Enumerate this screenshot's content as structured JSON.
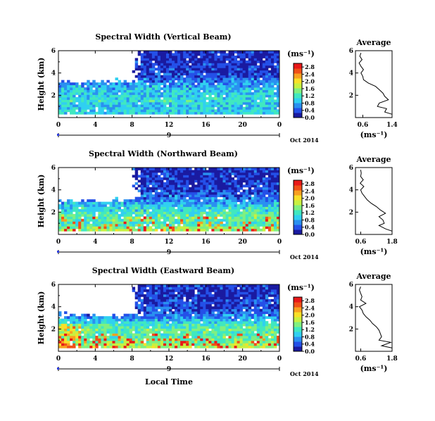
{
  "chart_data": [
    {
      "type": "heatmap",
      "title": "Spectral Width (Vertical Beam)",
      "ylabel": "Height (km)",
      "y_ticks": [
        "6",
        "4",
        "2"
      ],
      "x_ticks": [
        "0",
        "4",
        "8",
        "12",
        "16",
        "20",
        "0"
      ],
      "ylim": [
        0,
        6
      ],
      "xlim": [
        0,
        24
      ],
      "day_label": "9",
      "date_label": "Oct 2014",
      "colorbar": {
        "unit": "(ms⁻¹)",
        "ticks": [
          "2.8",
          "2.4",
          "2.0",
          "1.6",
          "1.2",
          "0.8",
          "0.4",
          "0.0"
        ],
        "range": [
          0,
          3.0
        ],
        "colors": [
          "#1a1aa0",
          "#2450e8",
          "#2a90f0",
          "#30d0f0",
          "#40e8c0",
          "#80f080",
          "#c8f040",
          "#f8e028",
          "#f8a020",
          "#f05018",
          "#e81818"
        ]
      },
      "typical_value_by_height": {
        "heights": [
          0.5,
          1.0,
          1.5,
          2.0,
          2.5,
          3.0,
          3.5,
          4.0,
          4.5,
          5.0,
          5.5
        ],
        "values": [
          1.0,
          0.9,
          1.1,
          1.0,
          0.9,
          0.7,
          0.5,
          0.3,
          0.3,
          0.2,
          0.2
        ]
      },
      "no_data_region": {
        "x_range": [
          0,
          8.5
        ],
        "height_range": [
          3.0,
          6.0
        ]
      },
      "profile": {
        "title": "Average",
        "xlabel": "(ms⁻¹)",
        "x_ticks": [
          "0.6",
          "1.4"
        ],
        "xlim": [
          0.4,
          1.4
        ],
        "y_ticks": [
          "6",
          "4",
          "2"
        ],
        "ylim": [
          0,
          6
        ],
        "height": [
          0.3,
          0.5,
          0.8,
          1.0,
          1.3,
          1.6,
          1.9,
          2.2,
          2.5,
          2.8,
          3.1,
          3.4,
          3.7,
          4.0,
          4.3,
          4.6,
          4.9,
          5.2,
          5.5,
          5.8
        ],
        "values": [
          1.4,
          1.2,
          1.25,
          1.0,
          1.05,
          1.3,
          1.2,
          1.15,
          1.05,
          0.95,
          0.75,
          0.62,
          0.6,
          0.55,
          0.62,
          0.55,
          0.5,
          0.58,
          0.52,
          0.55
        ]
      }
    },
    {
      "type": "heatmap",
      "title": "Spectral Width (Northward Beam)",
      "ylabel": "Height (km)",
      "y_ticks": [
        "6",
        "4",
        "2"
      ],
      "x_ticks": [
        "0",
        "4",
        "8",
        "12",
        "16",
        "20",
        "0"
      ],
      "ylim": [
        0,
        6
      ],
      "xlim": [
        0,
        24
      ],
      "day_label": "9",
      "date_label": "Oct 2014",
      "colorbar": {
        "unit": "(ms⁻¹)",
        "ticks": [
          "2.8",
          "2.4",
          "2.0",
          "1.6",
          "1.2",
          "0.8",
          "0.4",
          "0.0"
        ],
        "range": [
          0,
          3.0
        ],
        "colors": [
          "#1a1aa0",
          "#2450e8",
          "#2a90f0",
          "#30d0f0",
          "#40e8c0",
          "#80f080",
          "#c8f040",
          "#f8e028",
          "#f8a020",
          "#f05018",
          "#e81818"
        ]
      },
      "typical_value_by_height": {
        "heights": [
          0.5,
          1.0,
          1.5,
          2.0,
          2.5,
          3.0,
          3.5,
          4.0,
          4.5,
          5.0,
          5.5
        ],
        "values": [
          1.6,
          1.2,
          1.4,
          1.2,
          1.0,
          0.7,
          0.5,
          0.35,
          0.3,
          0.25,
          0.25
        ]
      },
      "no_data_region": {
        "x_range": [
          0,
          8.5
        ],
        "height_range": [
          2.8,
          6.0
        ]
      },
      "profile": {
        "title": "Average",
        "xlabel": "(ms⁻¹)",
        "x_ticks": [
          "0.6",
          "1.8"
        ],
        "xlim": [
          0.4,
          1.8
        ],
        "y_ticks": [
          "6",
          "4",
          "2"
        ],
        "ylim": [
          0,
          6
        ],
        "height": [
          0.3,
          0.5,
          0.8,
          1.0,
          1.3,
          1.6,
          1.9,
          2.2,
          2.5,
          2.8,
          3.1,
          3.4,
          3.7,
          4.0,
          4.3,
          4.6,
          4.9,
          5.2,
          5.5,
          5.8
        ],
        "values": [
          1.8,
          1.55,
          1.3,
          1.5,
          1.45,
          1.3,
          1.55,
          1.35,
          1.2,
          1.0,
          0.85,
          0.75,
          0.65,
          0.6,
          0.72,
          0.58,
          0.7,
          0.6,
          0.62,
          0.6
        ]
      }
    },
    {
      "type": "heatmap",
      "title": "Spectral Width (Eastward Beam)",
      "ylabel": "Height (km)",
      "y_ticks": [
        "6",
        "4",
        "2"
      ],
      "x_ticks": [
        "0",
        "4",
        "8",
        "12",
        "16",
        "20",
        "0"
      ],
      "ylim": [
        0,
        6
      ],
      "xlim": [
        0,
        24
      ],
      "day_label": "9",
      "date_label": "Oct 2014",
      "xlabel": "Local Time",
      "colorbar": {
        "unit": "(ms⁻¹)",
        "ticks": [
          "2.8",
          "2.4",
          "2.0",
          "1.6",
          "1.2",
          "0.8",
          "0.4",
          "0.0"
        ],
        "range": [
          0,
          3.0
        ],
        "colors": [
          "#1a1aa0",
          "#2450e8",
          "#2a90f0",
          "#30d0f0",
          "#40e8c0",
          "#80f080",
          "#c8f040",
          "#f8e028",
          "#f8a020",
          "#f05018",
          "#e81818"
        ]
      },
      "typical_value_by_height": {
        "heights": [
          0.5,
          1.0,
          1.5,
          2.0,
          2.5,
          3.0,
          3.5,
          4.0,
          4.5,
          5.0,
          5.5
        ],
        "values": [
          1.7,
          1.4,
          1.3,
          1.4,
          1.1,
          0.7,
          0.45,
          0.35,
          0.3,
          0.25,
          0.25
        ]
      },
      "no_data_region": {
        "x_range": [
          0,
          8.5
        ],
        "height_range": [
          3.0,
          6.0
        ]
      },
      "profile": {
        "title": "Average",
        "xlabel": "(ms⁻¹)",
        "x_ticks": [
          "0.6",
          "1.8"
        ],
        "xlim": [
          0.4,
          1.8
        ],
        "y_ticks": [
          "6",
          "4",
          "2"
        ],
        "ylim": [
          0,
          6
        ],
        "height": [
          0.3,
          0.5,
          0.8,
          1.0,
          1.3,
          1.6,
          1.9,
          2.2,
          2.5,
          2.8,
          3.1,
          3.4,
          3.7,
          4.0,
          4.3,
          4.6,
          4.9,
          5.2,
          5.5,
          5.8
        ],
        "values": [
          1.8,
          1.4,
          1.75,
          1.3,
          1.4,
          1.35,
          1.3,
          1.2,
          1.05,
          0.95,
          0.8,
          0.7,
          0.65,
          0.55,
          0.8,
          0.6,
          0.65,
          0.6,
          0.55,
          0.6
        ]
      }
    }
  ]
}
